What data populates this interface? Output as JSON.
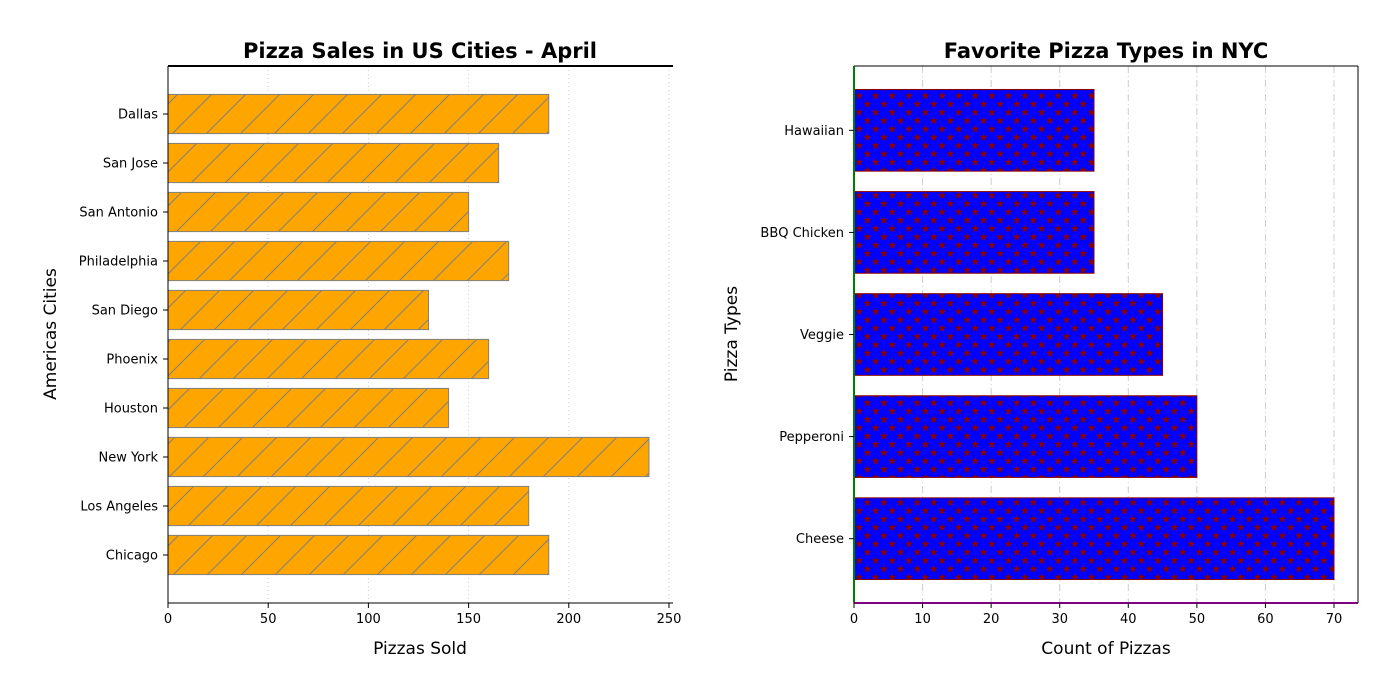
{
  "chart_data": [
    {
      "type": "bar",
      "orientation": "horizontal",
      "title": "Pizza Sales in US Cities - April",
      "xlabel": "Pizzas Sold",
      "ylabel": "Americas Cities",
      "categories": [
        "Chicago",
        "Los Angeles",
        "New York",
        "Houston",
        "Phoenix",
        "San Diego",
        "Philadelphia",
        "San Antonio",
        "San Jose",
        "Dallas"
      ],
      "values": [
        190,
        180,
        240,
        140,
        160,
        130,
        170,
        150,
        165,
        190
      ],
      "xlim": [
        0,
        252
      ],
      "xticks": [
        0,
        50,
        100,
        150,
        200,
        250
      ],
      "grid": "x dotted",
      "bar_color": "#ffa500",
      "edge_color": "#808080",
      "hatch": "diagonal"
    },
    {
      "type": "bar",
      "orientation": "horizontal",
      "title": "Favorite Pizza Types in NYC",
      "xlabel": "Count of Pizzas",
      "ylabel": "Pizza Types",
      "categories": [
        "Cheese",
        "Pepperoni",
        "Veggie",
        "BBQ Chicken",
        "Hawaiian"
      ],
      "values": [
        70,
        50,
        45,
        35,
        35
      ],
      "xlim": [
        0,
        73.5
      ],
      "xticks": [
        0,
        10,
        20,
        30,
        40,
        50,
        60,
        70
      ],
      "grid": "x dash-dot",
      "bar_color": "#0000ff",
      "edge_color": "#8b0000",
      "hatch": "stars",
      "left_spine_color": "#008000",
      "bottom_spine_color": "#800080"
    }
  ]
}
